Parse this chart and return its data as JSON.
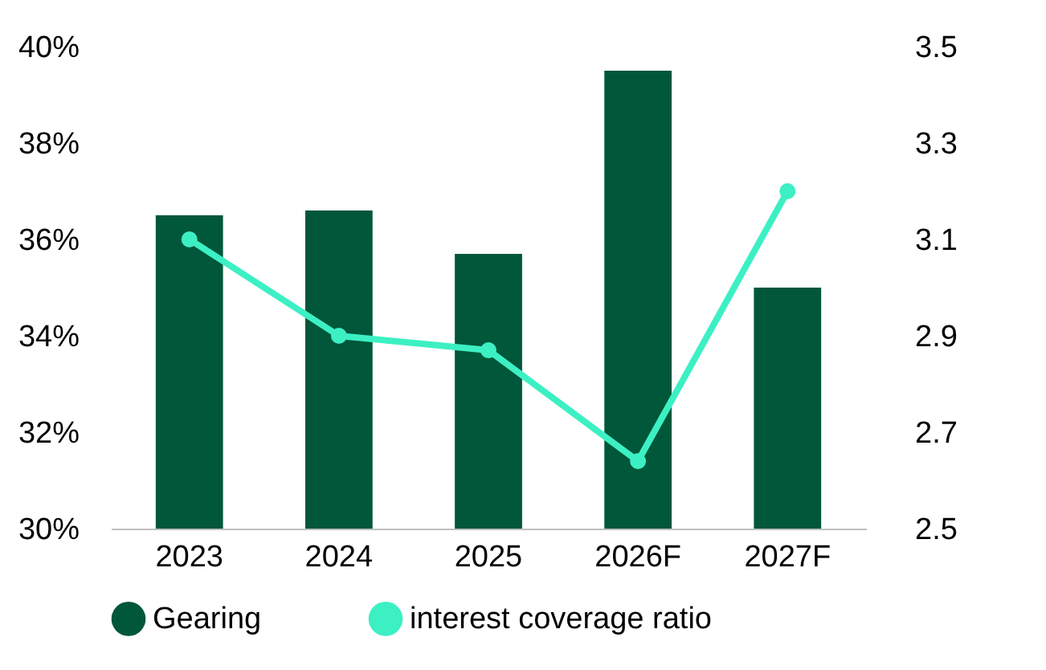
{
  "chart_data": {
    "type": "bar",
    "categories": [
      "2023",
      "2024",
      "2025",
      "2026F",
      "2027F"
    ],
    "series": [
      {
        "name": "Gearing",
        "color": "#00573a",
        "values": [
          36.5,
          36.6,
          35.7,
          39.5,
          35.0
        ]
      },
      {
        "name": "interest coverage ratio",
        "type": "line",
        "axis": "y2",
        "color": "#3cf0c4",
        "marker": "circle",
        "values": [
          3.1,
          2.9,
          2.87,
          2.64,
          3.2
        ]
      }
    ],
    "ylim": [
      30,
      40
    ],
    "yticks": [
      {
        "value": 30,
        "label": "30%"
      },
      {
        "value": 32,
        "label": "32%"
      },
      {
        "value": 34,
        "label": "34%"
      },
      {
        "value": 36,
        "label": "36%"
      },
      {
        "value": 38,
        "label": "38%"
      },
      {
        "value": 40,
        "label": "40%"
      }
    ],
    "y2lim": [
      2.5,
      3.5
    ],
    "y2ticks": [
      {
        "value": 2.5,
        "label": "2.5"
      },
      {
        "value": 2.7,
        "label": "2.7"
      },
      {
        "value": 2.9,
        "label": "2.9"
      },
      {
        "value": 3.1,
        "label": "3.1"
      },
      {
        "value": 3.3,
        "label": "3.3"
      },
      {
        "value": 3.5,
        "label": "3.5"
      }
    ],
    "legend": "bottom",
    "grid": false
  }
}
